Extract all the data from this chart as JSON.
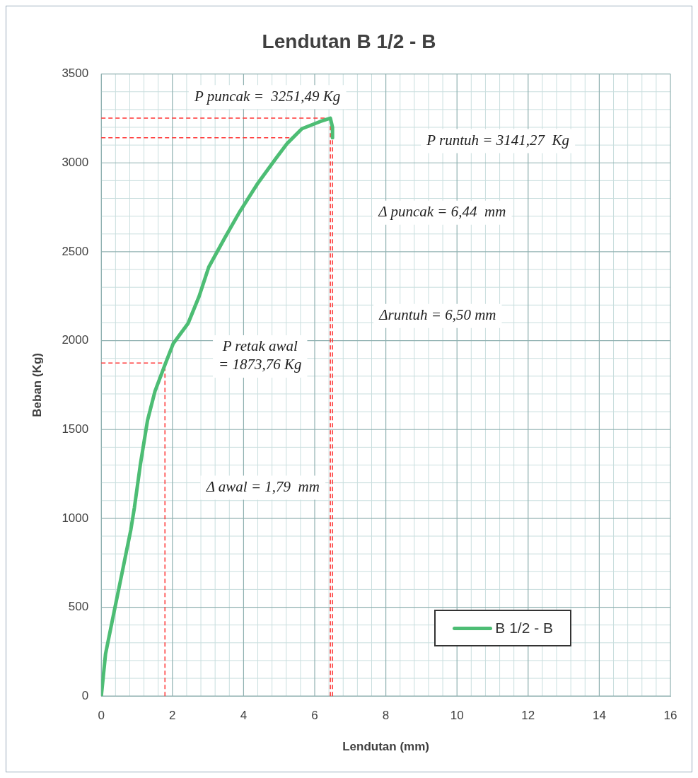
{
  "chart_data": {
    "type": "line",
    "title": "Lendutan B 1/2 - B",
    "xlabel": "Lendutan (mm)",
    "ylabel": "Beban (Kg)",
    "xlim": [
      0,
      16
    ],
    "xticks": [
      0,
      2,
      4,
      6,
      8,
      10,
      12,
      14,
      16
    ],
    "ylim": [
      0,
      3500
    ],
    "yticks": [
      0,
      500,
      1000,
      1500,
      2000,
      2500,
      3000,
      3500
    ],
    "grid": true,
    "legend": "bottom right",
    "marker": "none",
    "line_style": "solid",
    "series": [
      {
        "name": "B 1/2 - B",
        "color": "#4dbd74",
        "x": [
          0,
          0.12,
          0.37,
          0.58,
          0.83,
          0.93,
          1.1,
          1.3,
          1.51,
          1.78,
          2.02,
          2.44,
          2.75,
          3.02,
          3.47,
          3.88,
          4.4,
          4.92,
          5.23,
          5.64,
          6.16,
          6.44,
          6.5,
          6.5
        ],
        "values": [
          0,
          238,
          484,
          689,
          935,
          1059,
          1305,
          1551,
          1715,
          1859,
          1982,
          2097,
          2249,
          2413,
          2577,
          2721,
          2885,
          3028,
          3110,
          3192,
          3233,
          3251,
          3200,
          3141
        ]
      }
    ],
    "ref_lines": [
      {
        "axis": "y",
        "value": 3251.49,
        "color": "#ff3333",
        "line_style": "dashed"
      },
      {
        "axis": "y",
        "value": 3141.27,
        "color": "#ff3333",
        "line_style": "dashed"
      },
      {
        "axis": "y",
        "value": 1873.76,
        "color": "#ff3333",
        "line_style": "dashed"
      },
      {
        "axis": "x",
        "value": 1.79,
        "color": "#ff3333",
        "line_style": "dashed"
      },
      {
        "axis": "x",
        "value": 6.44,
        "color": "#ff3333",
        "line_style": "dashed"
      },
      {
        "axis": "x",
        "value": 6.5,
        "color": "#ff3333",
        "line_style": "dashed"
      }
    ],
    "annotations": [
      "P puncak =  3251,49 Kg",
      "P runtuh = 3141,27  Kg",
      "Δ puncak = 6,44  mm",
      "Δruntuh = 6,50 mm",
      "P retak awal\n= 1873,76 Kg",
      "Δ awal = 1,79  mm"
    ]
  }
}
